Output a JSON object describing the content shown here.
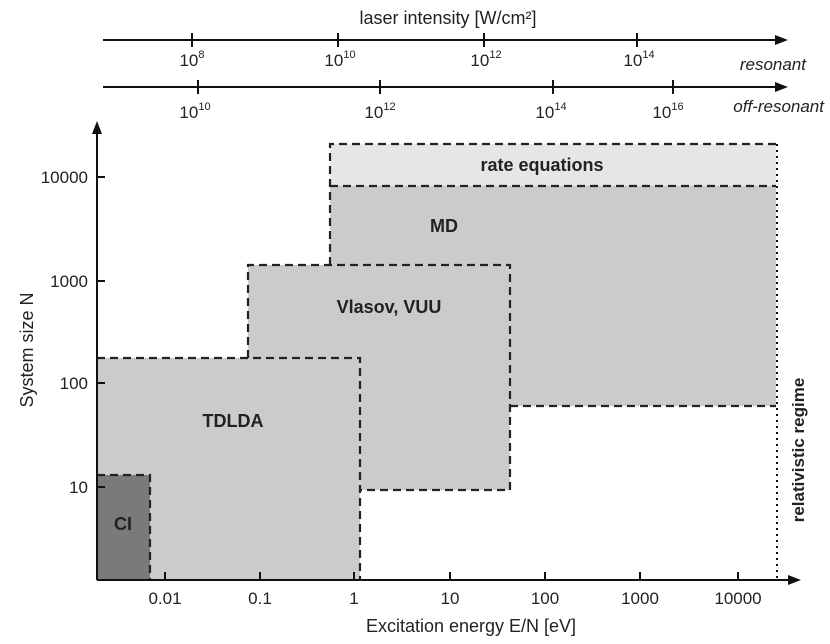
{
  "top_axis": {
    "title": "laser intensity [W/cm²]",
    "resonant": {
      "label": "resonant",
      "ticks": [
        {
          "base": "10",
          "exp": "8"
        },
        {
          "base": "10",
          "exp": "10"
        },
        {
          "base": "10",
          "exp": "12"
        },
        {
          "base": "10",
          "exp": "14"
        }
      ]
    },
    "off_resonant": {
      "label": "off-resonant",
      "ticks": [
        {
          "base": "10",
          "exp": "10"
        },
        {
          "base": "10",
          "exp": "12"
        },
        {
          "base": "10",
          "exp": "14"
        },
        {
          "base": "10",
          "exp": "16"
        }
      ]
    }
  },
  "x_axis": {
    "label": "Excitation energy E/N [eV]",
    "ticks": [
      "0.01",
      "0.1",
      "1",
      "10",
      "100",
      "1000",
      "10000"
    ]
  },
  "y_axis": {
    "label": "System size N",
    "ticks": [
      "10",
      "100",
      "1000",
      "10000"
    ]
  },
  "regions": {
    "rate_equations": "rate equations",
    "md": "MD",
    "vlasov": "Vlasov, VUU",
    "tdlda": "TDLDA",
    "ci": "CI"
  },
  "relativistic_label": "relativistic regime",
  "colors": {
    "light": "#e6e6e6",
    "medium": "#cbcbcb",
    "dark": "#7a7a7a"
  }
}
